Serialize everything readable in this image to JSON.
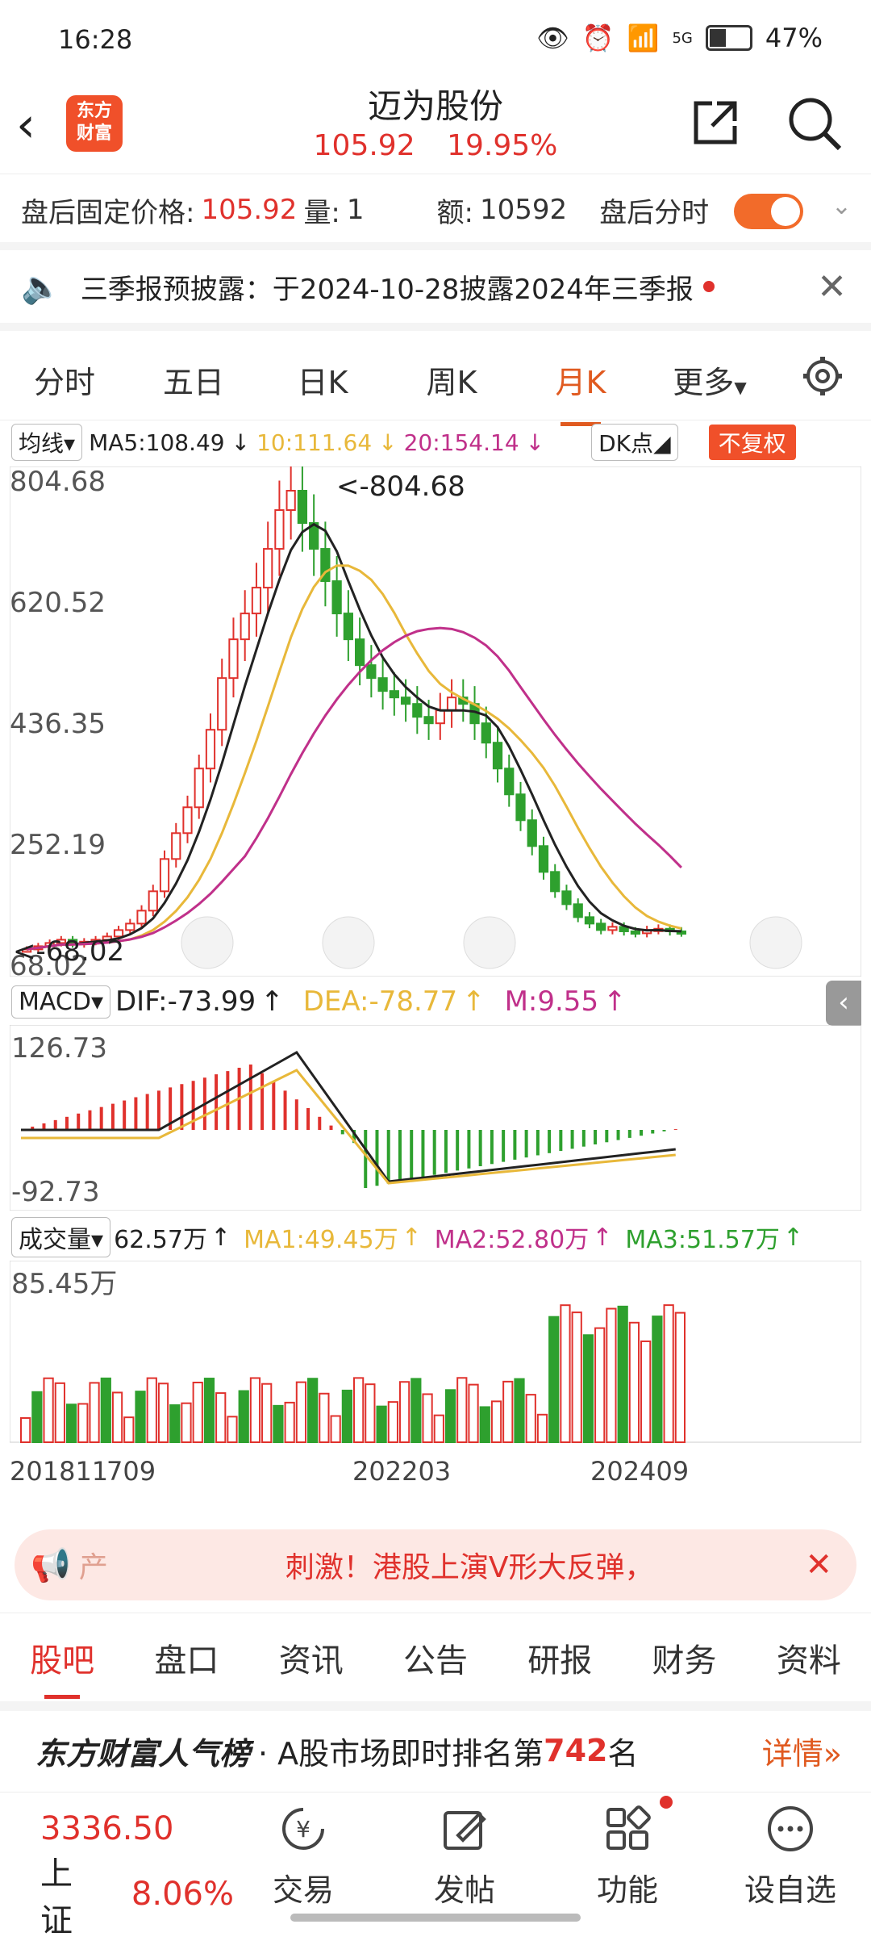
{
  "status": {
    "time": "16:28",
    "network": "5G",
    "battery": "47%"
  },
  "header": {
    "title": "迈为股份",
    "price": "105.92",
    "change": "19.95%",
    "logo_line1": "东方",
    "logo_line2": "财富"
  },
  "after_hours": {
    "fixed_label": "盘后固定价格:",
    "fixed_value": "105.92",
    "vol_label": "量:",
    "vol_value": "1",
    "amt_label": "额:",
    "amt_value": "10592",
    "mode_label": "盘后分时"
  },
  "notice": {
    "text": "三季报预披露：于2024-10-28披露2024年三季报"
  },
  "tabs": [
    "分时",
    "五日",
    "日K",
    "周K",
    "月K",
    "更多",
    ""
  ],
  "kline": {
    "ma_label": "均线",
    "ma5": "MA5:108.49",
    "ma10": "10:111.64",
    "ma20": "20:154.14",
    "dk_label": "DK点",
    "adj_label": "不复权",
    "yticks": [
      "804.68",
      "620.52",
      "436.35",
      "252.19",
      "68.02"
    ],
    "max_label": "<-804.68",
    "min_label": "<-68.02"
  },
  "macd": {
    "label": "MACD",
    "dif": "DIF:-73.99",
    "dea": "DEA:-78.77",
    "m": "M:9.55",
    "ytop": "126.73",
    "ybottom": "-92.73"
  },
  "volume": {
    "label": "成交量",
    "value": "62.57万",
    "ma1": "MA1:49.45万",
    "ma2": "MA2:52.80万",
    "ma3": "MA3:51.57万",
    "ytop": "85.45万",
    "x": [
      "201811",
      "709",
      "202203",
      "202409"
    ]
  },
  "banner": {
    "left": "产",
    "text": "刺激！港股上演V形大反弹，"
  },
  "bottom_tabs": [
    "股吧",
    "盘口",
    "资讯",
    "公告",
    "研报",
    "财务",
    "资料"
  ],
  "rank": {
    "brand": "东方财富人气榜",
    "text": "· A股市场即时排名第",
    "num": "742",
    "suffix": "名",
    "detail": "详情"
  },
  "nav": {
    "index_value": "3336.50",
    "index_name": "上证",
    "index_change": "8.06%",
    "trade": "交易",
    "post": "发帖",
    "func": "功能",
    "fav": "设自选"
  },
  "colors": {
    "up": "#e0312c",
    "down": "#2ea02e",
    "ma10": "#e8b83a",
    "ma20": "#c0308a",
    "accent": "#f26b2a"
  }
}
